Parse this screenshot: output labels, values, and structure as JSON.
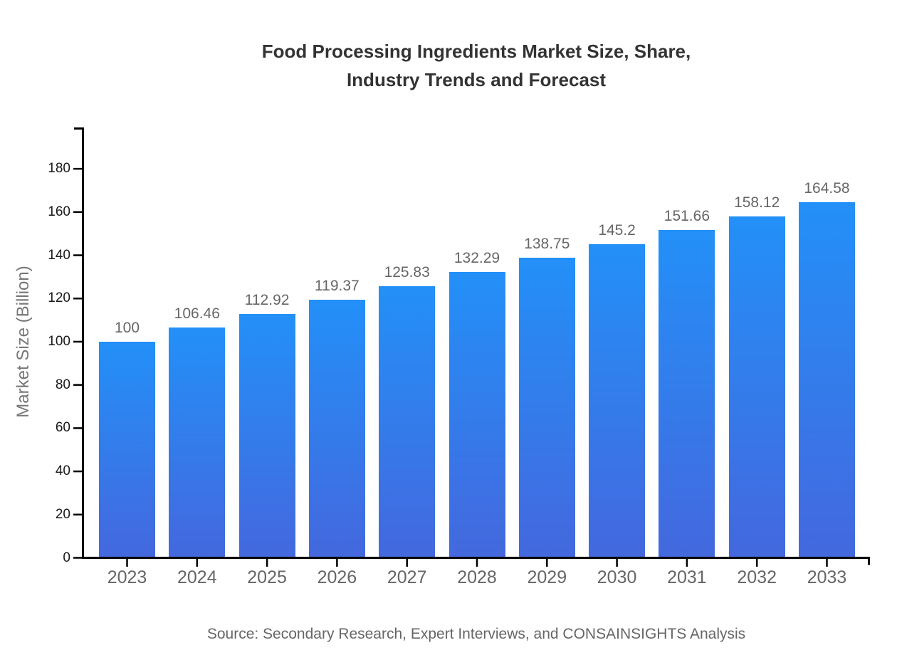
{
  "chart_data": {
    "type": "bar",
    "title": "Food Processing Ingredients Market Size, Share,\nIndustry Trends and Forecast",
    "categories": [
      "2023",
      "2024",
      "2025",
      "2026",
      "2027",
      "2028",
      "2029",
      "2030",
      "2031",
      "2032",
      "2033"
    ],
    "values": [
      100,
      106.46,
      112.92,
      119.37,
      125.83,
      132.29,
      138.75,
      145.2,
      151.66,
      158.12,
      164.58
    ],
    "value_labels": [
      "100",
      "106.46",
      "112.92",
      "119.37",
      "125.83",
      "132.29",
      "138.75",
      "145.2",
      "151.66",
      "158.12",
      "164.58"
    ],
    "xlabel": "",
    "ylabel": "Market Size (Billion)",
    "ylim": [
      0,
      198
    ],
    "yticks": [
      0,
      20,
      40,
      60,
      80,
      100,
      120,
      140,
      160,
      180
    ],
    "grid": false,
    "legend": "none",
    "source": "Source: Secondary Research, Expert Interviews, and CONSAINSIGHTS Analysis",
    "colors": {
      "bar_gradient_top": "#2390F8",
      "bar_gradient_bottom": "#4468DE",
      "axis_line": "#000000",
      "y_tick_label": "#1A1A1A",
      "x_tick_label": "#666666",
      "value_label": "#666666",
      "axis_title": "#777777",
      "title": "#333333",
      "source": "#666666"
    }
  }
}
